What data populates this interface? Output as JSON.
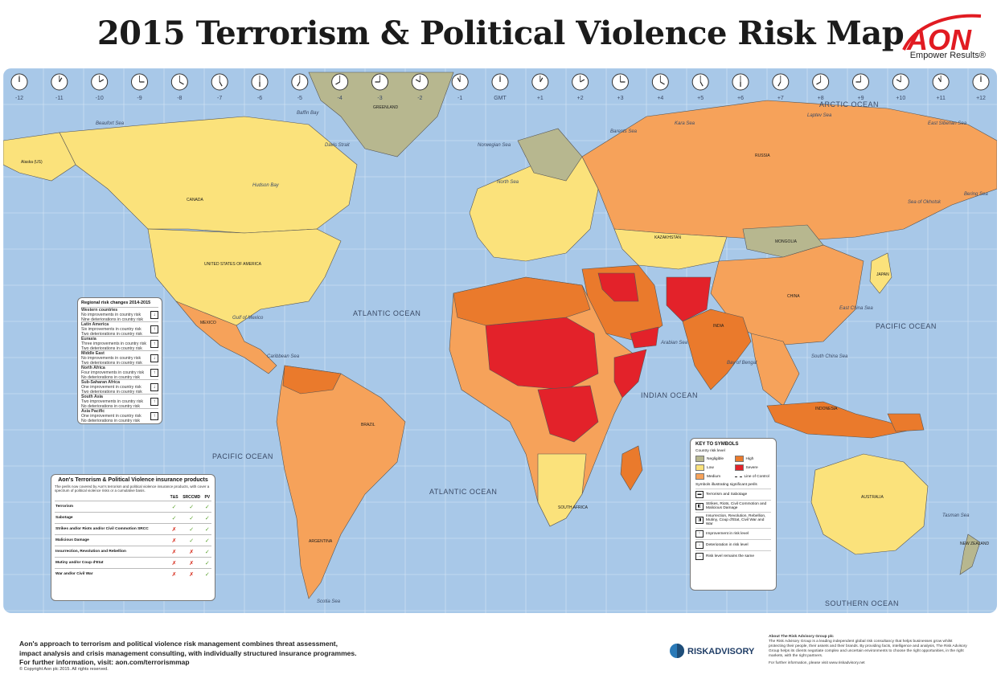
{
  "title": "2015 Terrorism & Political Violence Risk Map",
  "brand": {
    "name": "AON",
    "tagline": "Empower Results®"
  },
  "colors": {
    "ocean": "#a8c8e8",
    "negligible": "#b7b78f",
    "low": "#fbe27b",
    "medium": "#f6a25a",
    "high": "#ea7a2c",
    "severe": "#e3222a",
    "accent": "#e11b22"
  },
  "clocks": [
    "-12",
    "-11",
    "-10",
    "-9",
    "-8",
    "-7",
    "-6",
    "-5",
    "-4",
    "-3",
    "-2",
    "-1",
    "GMT",
    "+1",
    "+2",
    "+3",
    "+4",
    "+5",
    "+6",
    "+7",
    "+8",
    "+9",
    "+10",
    "+11",
    "+12"
  ],
  "oceans": {
    "arctic": "ARCTIC OCEAN",
    "atlantic_n": "ATLANTIC OCEAN",
    "pacific_e": "PACIFIC OCEAN",
    "pacific_w": "PACIFIC OCEAN",
    "atlantic_s": "ATLANTIC OCEAN",
    "indian": "INDIAN OCEAN",
    "southern": "SOUTHERN OCEAN"
  },
  "seas": {
    "beaufort": "Beaufort Sea",
    "baffin": "Baffin Bay",
    "hudson": "Hudson Bay",
    "davis": "Davis Strait",
    "norwegian": "Norwegian Sea",
    "barents": "Barents Sea",
    "kara": "Kara Sea",
    "laptev": "Laptev Sea",
    "east_siberian": "East Siberian Sea",
    "bering": "Bering Sea",
    "okhotsk": "Sea of Okhotsk",
    "north": "North Sea",
    "gulf_mexico": "Gulf of Mexico",
    "caribbean": "Caribbean Sea",
    "arabian": "Arabian Sea",
    "bengal": "Bay of Bengal",
    "south_china": "South China Sea",
    "east_china": "East China Sea",
    "tasman": "Tasman Sea",
    "scotia": "Scotia Sea"
  },
  "countries": {
    "greenland": "GREENLAND",
    "canada": "CANADA",
    "usa": "UNITED STATES OF AMERICA",
    "mexico": "MEXICO",
    "brazil": "BRAZIL",
    "russia": "RUSSIA",
    "kazakhstan": "KAZAKHSTAN",
    "mongolia": "MONGOLIA",
    "china": "CHINA",
    "india": "INDIA",
    "australia": "AUSTRALIA",
    "new_zealand": "NEW ZEALAND",
    "alaska": "Alaska (US)",
    "argentina": "ARGENTINA",
    "south_africa": "SOUTH AFRICA",
    "japan": "JAPAN",
    "indonesia": "INDONESIA"
  },
  "regional": {
    "title": "Regional risk changes 2014-2015",
    "rows": [
      {
        "name": "Western countries",
        "l1": "No improvements in country risk",
        "l2": "Nine deteriorations in country risk",
        "arrow": "↓"
      },
      {
        "name": "Latin America",
        "l1": "Six improvements in country risk",
        "l2": "Two deteriorations in country risk",
        "arrow": "↑"
      },
      {
        "name": "Eurasia",
        "l1": "Three improvements in country risk",
        "l2": "Two deteriorations in country risk",
        "arrow": "↑"
      },
      {
        "name": "Middle East",
        "l1": "No improvements in country risk",
        "l2": "Two deteriorations in country risk",
        "arrow": "↓"
      },
      {
        "name": "North Africa",
        "l1": "Four improvements in country risk",
        "l2": "No deteriorations in country risk",
        "arrow": "↑"
      },
      {
        "name": "Sub-Saharan Africa",
        "l1": "One improvement in country risk",
        "l2": "Two deteriorations in country risk",
        "arrow": "↓"
      },
      {
        "name": "South Asia",
        "l1": "Two improvements in country risk",
        "l2": "No deteriorations in country risk",
        "arrow": "↑"
      },
      {
        "name": "Asia Pacific",
        "l1": "One improvement in country risk",
        "l2": "No deteriorations in country risk",
        "arrow": "↑"
      }
    ]
  },
  "insurance": {
    "title": "Aon's Terrorism & Political Violence insurance products",
    "intro": "The perils now covered by Aon's terrorism and political violence insurance products, with cover a spectrum of political violence risks or a cumulative basis.",
    "columns": [
      "T&S",
      "SRCCMD",
      "PV"
    ],
    "rows": [
      {
        "peril": "Terrorism",
        "marks": [
          "✓",
          "✓",
          "✓"
        ]
      },
      {
        "peril": "Sabotage",
        "marks": [
          "✓",
          "✓",
          "✓"
        ]
      },
      {
        "peril": "Strikes and/or Riots and/or Civil Commotion SRCC",
        "marks": [
          "✗",
          "✓",
          "✓"
        ]
      },
      {
        "peril": "Malicious Damage",
        "marks": [
          "✗",
          "✓",
          "✓"
        ]
      },
      {
        "peril": "Insurrection, Revolution and Rebellion",
        "marks": [
          "✗",
          "✗",
          "✓"
        ]
      },
      {
        "peril": "Mutiny and/or Coup d'Etat",
        "marks": [
          "✗",
          "✗",
          "✓"
        ]
      },
      {
        "peril": "War and/or Civil War",
        "marks": [
          "✗",
          "✗",
          "✓"
        ]
      }
    ]
  },
  "key": {
    "title": "KEY TO SYMBOLS",
    "level_header": "Country risk level",
    "levels": {
      "negligible": "Negligible",
      "high": "High",
      "low": "Low",
      "severe": "Severe",
      "medium": "Medium",
      "loc": "Line of Control"
    },
    "symbols_header": "Symbols illustrating significant perils",
    "symbols": [
      {
        "icon": "▬",
        "label": "Terrorism and Sabotage"
      },
      {
        "icon": "◧",
        "label": "Strikes, Riots, Civil Commotion and Malicious Damage"
      },
      {
        "icon": "◨",
        "label": "Insurrection, Revolution, Rebellion, Mutiny, Coup d'Etat, Civil War and War"
      },
      {
        "icon": "↑",
        "label": "Improvement in risk level"
      },
      {
        "icon": "↓",
        "label": "Deterioration in risk level"
      },
      {
        "icon": "→",
        "label": "Risk level remains the same"
      }
    ]
  },
  "footer": {
    "line1": "Aon's approach to terrorism and political violence risk management combines threat assessment,",
    "line2": "impact analysis and crisis management consulting, with individually structured insurance programmes.",
    "line3": "For further information, visit: aon.com/terrorismmap",
    "copyright": "© Copyright Aon plc 2015. All rights reserved."
  },
  "risk_advisory": {
    "logo": "RISKADVISORY",
    "about_title": "About The Risk Advisory Group plc",
    "about": "The Risk Advisory Group is a leading independent global risk consultancy that helps businesses grow whilst protecting their people, their assets and their brands. By providing facts, intelligence and analysis, The Risk Advisory Group helps its clients negotiate complex and uncertain environments to choose the right opportunities, in the right markets, with the right partners.",
    "more": "For further information, please visit www.riskadvisory.net"
  }
}
